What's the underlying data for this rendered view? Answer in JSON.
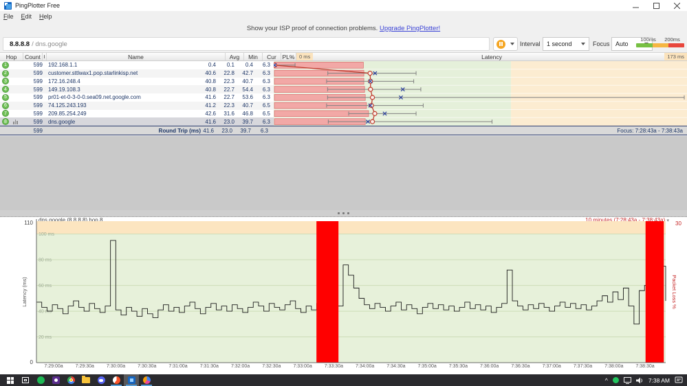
{
  "window": {
    "title": "PingPlotter Free",
    "menu": [
      "File",
      "Edit",
      "Help"
    ]
  },
  "banner": {
    "text": "Show your ISP proof of connection problems.",
    "link": "Upgrade PingPlotter!"
  },
  "target_bar": {
    "host": "8.8.8.8",
    "rest": "/ dns.google",
    "interval_label": "Interval",
    "interval_value": "1 second",
    "focus_label": "Focus",
    "focus_value": "Auto",
    "legend_labels": [
      "100ms",
      "200ms"
    ],
    "legend_colors": [
      "#77c043",
      "#f5b642",
      "#e8463c"
    ],
    "pause_color": "#f5a623"
  },
  "table": {
    "headers": [
      "Hop",
      "Count",
      "I",
      "Name",
      "Avg",
      "Min",
      "Cur",
      "PL%"
    ],
    "latency_header": "Latency",
    "scale_min_label": "0 ms",
    "scale_max_label": "173 ms",
    "scale_max_ms": 173,
    "green_zone_max_ms": 100,
    "rows": [
      {
        "hop": "1",
        "count": "599",
        "name": "192.168.1.1",
        "avg": "0.4",
        "min": "0.1",
        "cur": "0.4",
        "pl": "6.3",
        "selected": false,
        "graph": {
          "avg": 0.4,
          "min": 0.1,
          "cur": 0.4,
          "max": 9,
          "bar": 37.5
        }
      },
      {
        "hop": "2",
        "count": "599",
        "name": "customer.sttlwax1.pop.starlinkisp.net",
        "avg": "40.6",
        "min": "22.8",
        "cur": "42.7",
        "pl": "6.3",
        "selected": false,
        "graph": {
          "avg": 40.6,
          "min": 22.8,
          "cur": 42.7,
          "max": 60,
          "bar": 37.7
        }
      },
      {
        "hop": "3",
        "count": "599",
        "name": "172.16.248.4",
        "avg": "40.8",
        "min": "22.3",
        "cur": "40.7",
        "pl": "6.3",
        "selected": false,
        "graph": {
          "avg": 40.8,
          "min": 22.3,
          "cur": 40.7,
          "max": 59,
          "bar": 37.7
        }
      },
      {
        "hop": "4",
        "count": "599",
        "name": "149.19.108.3",
        "avg": "40.8",
        "min": "22.7",
        "cur": "54.4",
        "pl": "6.3",
        "selected": false,
        "graph": {
          "avg": 40.8,
          "min": 22.7,
          "cur": 54.4,
          "max": 62,
          "bar": 38.0
        }
      },
      {
        "hop": "5",
        "count": "599",
        "name": "pr01-et-0-3-0-0.sea09.net.google.com",
        "avg": "41.6",
        "min": "22.7",
        "cur": "53.6",
        "pl": "6.3",
        "selected": false,
        "graph": {
          "avg": 41.6,
          "min": 22.7,
          "cur": 53.6,
          "max": 173,
          "bar": 38.3
        }
      },
      {
        "hop": "6",
        "count": "599",
        "name": "74.125.243.193",
        "avg": "41.2",
        "min": "22.3",
        "cur": "40.7",
        "pl": "6.5",
        "selected": false,
        "graph": {
          "avg": 41.2,
          "min": 22.3,
          "cur": 40.7,
          "max": 63,
          "bar": 38.8
        }
      },
      {
        "hop": "7",
        "count": "599",
        "name": "209.85.254.249",
        "avg": "42.6",
        "min": "31.6",
        "cur": "46.8",
        "pl": "6.5",
        "selected": false,
        "graph": {
          "avg": 42.6,
          "min": 31.6,
          "cur": 46.8,
          "max": 60,
          "bar": 39.7
        }
      },
      {
        "hop": "8",
        "count": "599",
        "name": "dns.google",
        "avg": "41.6",
        "min": "23.0",
        "cur": "39.7",
        "pl": "6.3",
        "selected": true,
        "graph": {
          "avg": 41.6,
          "min": 23.0,
          "cur": 39.7,
          "max": 92,
          "bar": 38.3
        }
      }
    ],
    "summary": {
      "count": "599",
      "label": "Round Trip (ms)",
      "avg": "41.6",
      "min": "23.0",
      "cur": "39.7",
      "pl": "6.3"
    },
    "focus_text": "Focus: 7:28:43a - 7:38:43a",
    "colors": {
      "loss_bar_fill": "#f2a8a6",
      "loss_bar_stroke": "#d96a6a",
      "avg_line": "#c0392b",
      "cur_mark": "#2b3f9e",
      "range_line": "#808080",
      "green_bg": "#e5f0da",
      "peach_bg": "#fcecd1"
    }
  },
  "chart_data": {
    "type": "line",
    "title": "dns.google (8.8.8.8) hop 8",
    "range_label": "10 minutes (7:28:43a - 7:38:43a)",
    "ylabel": "Latency (ms)",
    "y2label": "Packet Loss %",
    "ylim": [
      0,
      110
    ],
    "y2lim": [
      0,
      30
    ],
    "y_axis_top_label": "110",
    "y_axis_bottom_label": "0",
    "y2_axis_top_label": "30",
    "gridline_values": [
      100,
      80,
      60,
      40,
      20
    ],
    "gridline_labels": [
      "100 ms",
      "80 ms",
      "60 ms",
      "40 ms",
      "20 ms"
    ],
    "green_zone_max_ms": 100,
    "x_tick_labels": [
      "7:29:00a",
      "7:29:30a",
      "7:30:00a",
      "7:30:30a",
      "7:31:00a",
      "7:31:30a",
      "7:32:00a",
      "7:32:30a",
      "7:33:00a",
      "7:33:30a",
      "7:34:00a",
      "7:34:30a",
      "7:35:00a",
      "7:35:30a",
      "7:36:00a",
      "7:36:30a",
      "7:37:00a",
      "7:37:30a",
      "7:38:00a",
      "7:38:30a"
    ],
    "packet_loss_bars_frac": [
      [
        0.445,
        0.48
      ],
      [
        0.968,
        0.997
      ]
    ],
    "latency_series_ms": [
      47,
      43,
      40,
      45,
      42,
      38,
      44,
      48,
      43,
      40,
      46,
      42,
      39,
      44,
      95,
      41,
      37,
      43,
      40,
      36,
      42,
      38,
      35,
      41,
      45,
      40,
      43,
      39,
      44,
      47,
      42,
      38,
      43,
      46,
      41,
      44,
      40,
      45,
      42,
      39,
      43,
      47,
      44,
      40,
      46,
      43,
      41,
      45,
      48,
      42,
      39,
      44,
      41,
      46,
      43,
      48,
      45,
      44,
      76,
      68,
      58,
      50,
      45,
      42,
      46,
      43,
      40,
      44,
      47,
      41,
      45,
      42,
      38,
      43,
      46,
      42,
      45,
      41,
      44,
      40,
      43,
      47,
      42,
      45,
      41,
      44,
      39,
      43,
      46,
      72,
      48,
      44,
      41,
      45,
      42,
      46,
      43,
      40,
      44,
      47,
      43,
      46,
      42,
      45,
      41,
      44,
      48,
      52,
      47,
      55,
      49,
      58,
      44,
      30,
      56,
      60,
      55,
      50,
      75,
      48
    ],
    "colors": {
      "trace": "#1a1a1a",
      "loss_bar": "#ff0000",
      "green_bg": "#e7f1da",
      "orange_bg": "#fce5c0",
      "gridline": "#ccdcb8",
      "grid_label": "#a0ad97",
      "axis": "#666666",
      "red_label": "#c62828"
    }
  },
  "taskbar": {
    "clock": "7:38 AM",
    "tray_expand_glyph": "^",
    "apps": [
      "start",
      "task-view",
      "spotify",
      "camera-app",
      "chrome",
      "file-explorer",
      "discord",
      "brave",
      "pingplotter",
      "colorful-app"
    ]
  }
}
